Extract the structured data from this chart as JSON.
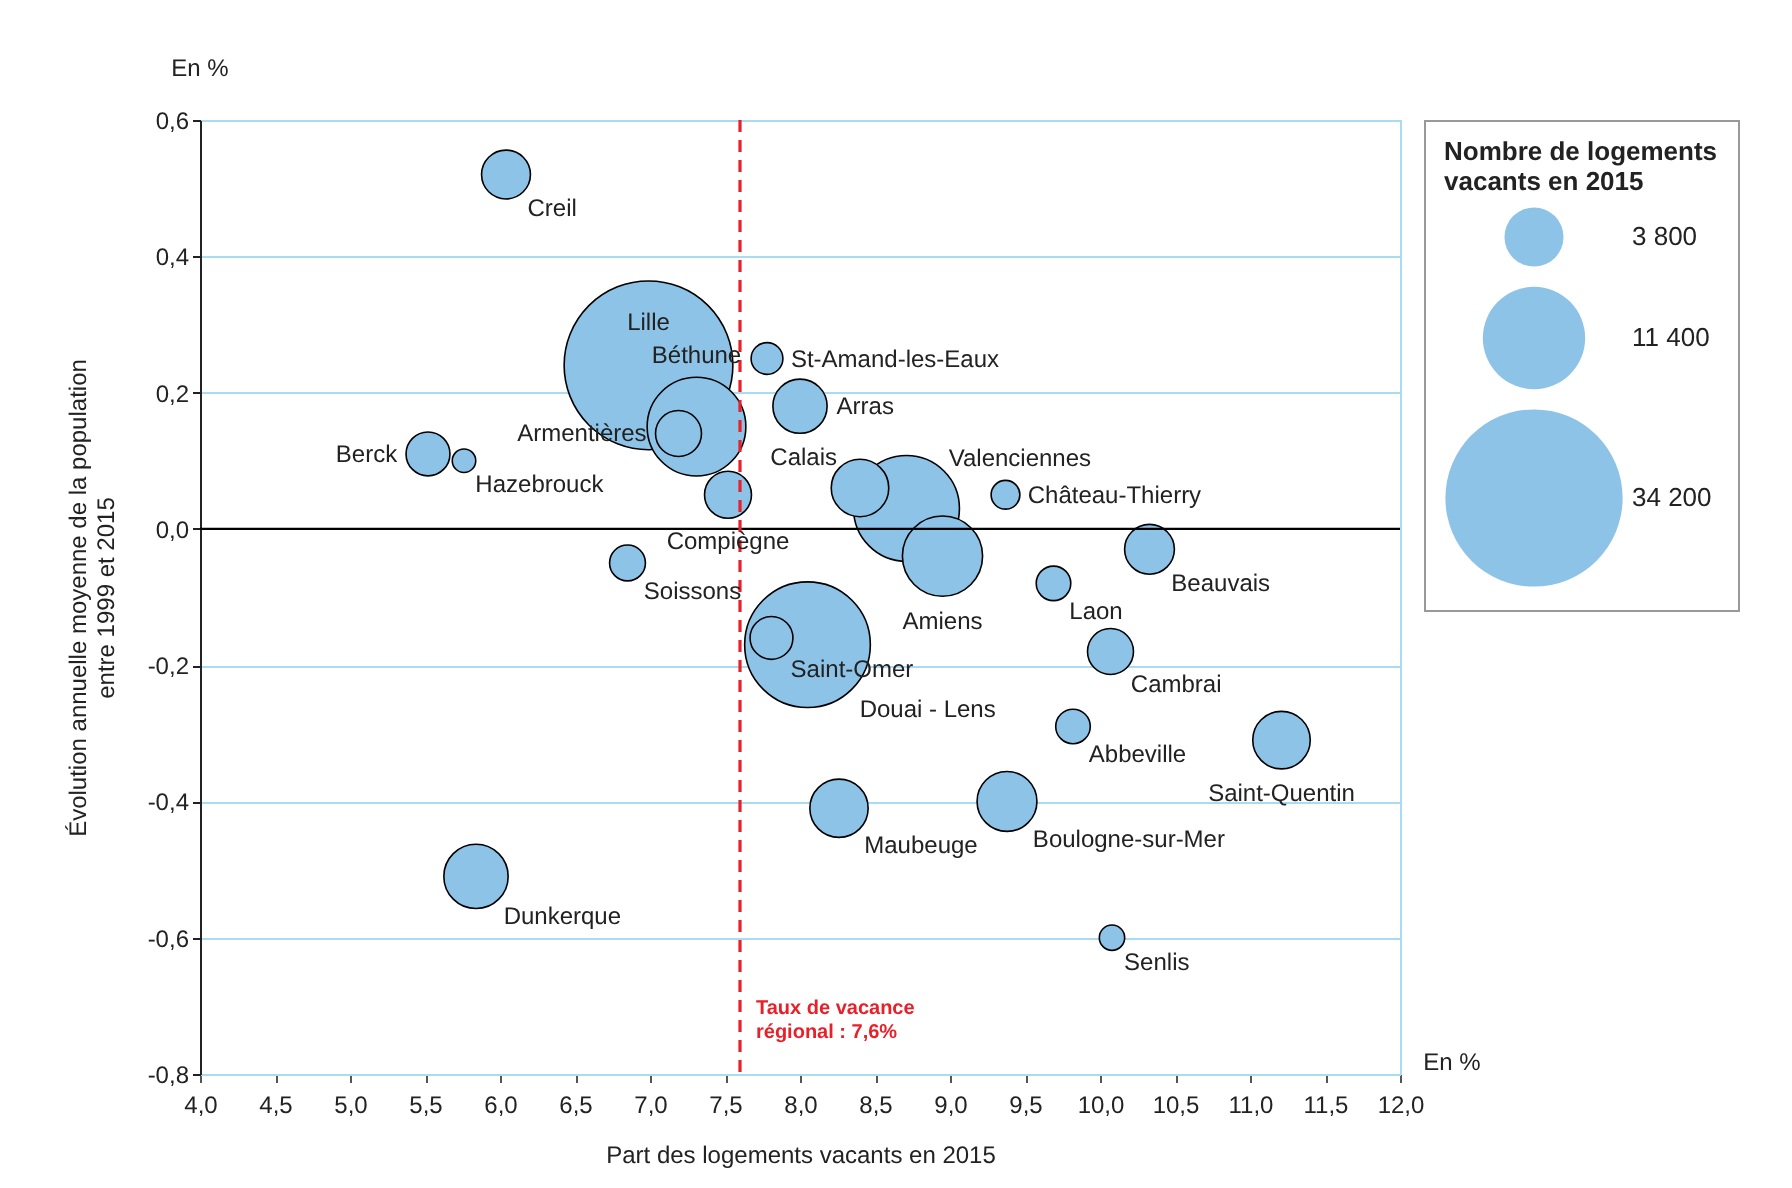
{
  "chart_data": {
    "type": "bubble",
    "xlabel": "Part des logements vacants en 2015",
    "ylabel": "Évolution annuelle moyenne de la population entre 1999 et 2015",
    "legend_title": "Nombre de logements vacants en 2015",
    "size_legend": [
      {
        "value": 3800,
        "label": "3 800"
      },
      {
        "value": 11400,
        "label": "11 400"
      },
      {
        "value": 34200,
        "label": "34 200"
      }
    ],
    "series": [
      {
        "color": "#8ec3e8",
        "x": [
          6.04,
          6.99,
          7.31,
          7.19,
          5.52,
          5.76,
          7.52,
          6.85,
          7.78,
          8.0,
          8.4,
          8.71,
          8.95,
          9.37,
          9.69,
          10.33,
          10.07,
          8.05,
          7.81,
          9.82,
          11.21,
          8.26,
          9.38,
          5.84,
          10.08
        ],
        "values": [
          0.52,
          0.24,
          0.15,
          0.14,
          0.11,
          0.1,
          0.05,
          -0.05,
          0.25,
          0.18,
          0.06,
          0.03,
          -0.04,
          0.05,
          -0.08,
          -0.03,
          -0.18,
          -0.17,
          -0.16,
          -0.29,
          -0.31,
          -0.41,
          -0.4,
          -0.51,
          -0.6
        ],
        "sizes": [
          2600,
          31000,
          10600,
          2300,
          2100,
          600,
          2400,
          1400,
          1100,
          3200,
          3600,
          12200,
          7000,
          900,
          1300,
          2700,
          2300,
          17200,
          2000,
          1300,
          3600,
          3700,
          3900,
          4500,
          700
        ]
      }
    ],
    "xlim": [
      4,
      12
    ],
    "xticks": [
      {
        "value": 4,
        "label": "4,0"
      },
      {
        "value": 4.5,
        "label": "4,5"
      },
      {
        "value": 5,
        "label": "5,0"
      },
      {
        "value": 5.5,
        "label": "5,5"
      },
      {
        "value": 6,
        "label": "6,0"
      },
      {
        "value": 6.5,
        "label": "6,5"
      },
      {
        "value": 7,
        "label": "7,0"
      },
      {
        "value": 7.5,
        "label": "7,5"
      },
      {
        "value": 8,
        "label": "8,0"
      },
      {
        "value": 8.5,
        "label": "8,5"
      },
      {
        "value": 9,
        "label": "9,0"
      },
      {
        "value": 9.5,
        "label": "9,5"
      },
      {
        "value": 10,
        "label": "10,0"
      },
      {
        "value": 10.5,
        "label": "10,5"
      },
      {
        "value": 11,
        "label": "11,0"
      },
      {
        "value": 11.5,
        "label": "11,5"
      },
      {
        "value": 12,
        "label": "12,0"
      }
    ],
    "ylim": [
      -0.8,
      0.6
    ],
    "yticks": [
      {
        "value": -0.8,
        "label": "-0,8"
      },
      {
        "value": -0.6,
        "label": "-0,6"
      },
      {
        "value": -0.4,
        "label": "-0,4"
      },
      {
        "value": -0.2,
        "label": "-0,2"
      },
      {
        "value": 0,
        "label": "0,0"
      },
      {
        "value": 0.2,
        "label": "0,2"
      },
      {
        "value": 0.4,
        "label": "0,4"
      },
      {
        "value": 0.6,
        "label": "0,6"
      }
    ],
    "grid": "y",
    "ref_lines": [
      {
        "axis": "y",
        "value": 0,
        "color": "#000000"
      },
      {
        "axis": "x",
        "value": 7.6,
        "label": "Taux de vacance régional : 7,6%",
        "color": "#e8202a",
        "line_style": "dashed"
      }
    ],
    "annotations": [
      "En %",
      "En %",
      {
        "text": "Creil",
        "x": 6.04,
        "y": 0.52
      },
      {
        "text": "Lille",
        "x": 6.99,
        "y": 0.24
      },
      {
        "text": "Béthune",
        "x": 7.31,
        "y": 0.15
      },
      {
        "text": "Armentières",
        "x": 7.19,
        "y": 0.14
      },
      {
        "text": "Berck",
        "x": 5.52,
        "y": 0.11
      },
      {
        "text": "Hazebrouck",
        "x": 5.76,
        "y": 0.1
      },
      {
        "text": "Compiègne",
        "x": 7.52,
        "y": 0.05
      },
      {
        "text": "Soissons",
        "x": 6.85,
        "y": -0.05
      },
      {
        "text": "St-Amand-les-Eaux",
        "x": 7.78,
        "y": 0.25
      },
      {
        "text": "Arras",
        "x": 8.0,
        "y": 0.18
      },
      {
        "text": "Calais",
        "x": 8.4,
        "y": 0.06
      },
      {
        "text": "Valenciennes",
        "x": 8.71,
        "y": 0.03
      },
      {
        "text": "Amiens",
        "x": 8.95,
        "y": -0.04
      },
      {
        "text": "Château-Thierry",
        "x": 9.37,
        "y": 0.05
      },
      {
        "text": "Laon",
        "x": 9.69,
        "y": -0.08
      },
      {
        "text": "Beauvais",
        "x": 10.33,
        "y": -0.03
      },
      {
        "text": "Cambrai",
        "x": 10.07,
        "y": -0.18
      },
      {
        "text": "Douai - Lens",
        "x": 8.05,
        "y": -0.17
      },
      {
        "text": "Saint-Omer",
        "x": 7.81,
        "y": -0.16
      },
      {
        "text": "Abbeville",
        "x": 9.82,
        "y": -0.29
      },
      {
        "text": "Saint-Quentin",
        "x": 11.21,
        "y": -0.31
      },
      {
        "text": "Maubeuge",
        "x": 8.26,
        "y": -0.41
      },
      {
        "text": "Boulogne-sur-Mer",
        "x": 9.38,
        "y": -0.4
      },
      {
        "text": "Dunkerque",
        "x": 5.84,
        "y": -0.51
      },
      {
        "text": "Senlis",
        "x": 10.08,
        "y": -0.6
      }
    ]
  }
}
